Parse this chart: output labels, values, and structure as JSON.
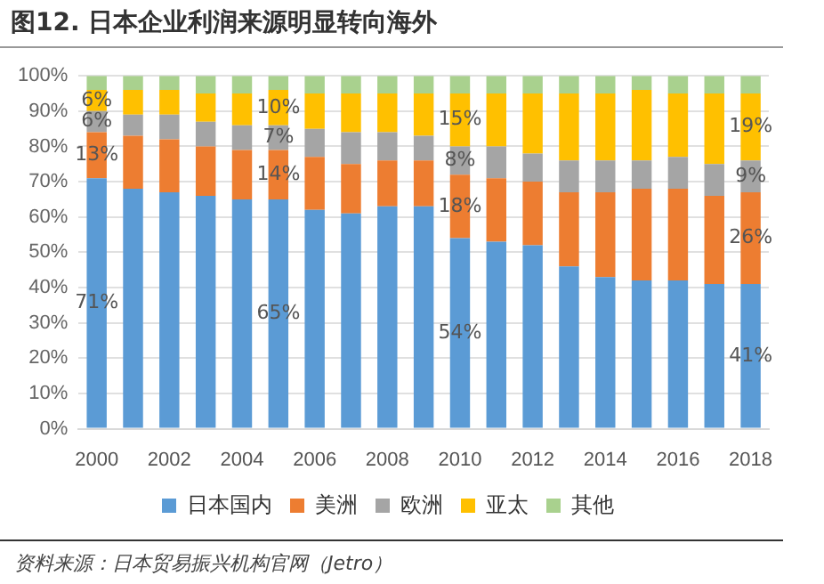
{
  "chart_data": {
    "type": "bar",
    "stacked": true,
    "title": "图12. 日本企业利润来源明显转向海外",
    "categories": [
      "2000",
      null,
      "2002",
      null,
      "2004",
      null,
      "2006",
      null,
      "2008",
      null,
      "2010",
      null,
      "2012",
      null,
      "2014",
      null,
      "2016",
      null,
      "2018"
    ],
    "series": [
      {
        "name": "日本国内",
        "color": "#5b9bd5",
        "values": [
          71,
          68,
          67,
          66,
          65,
          65,
          62,
          61,
          63,
          63,
          54,
          53,
          52,
          46,
          43,
          42,
          42,
          41,
          41
        ],
        "value_labels": [
          "71%",
          null,
          null,
          null,
          null,
          "65%",
          null,
          null,
          null,
          null,
          "54%",
          null,
          null,
          null,
          null,
          null,
          null,
          null,
          "41%"
        ]
      },
      {
        "name": "美洲",
        "color": "#ed7d31",
        "values": [
          13,
          15,
          15,
          14,
          14,
          14,
          15,
          14,
          13,
          13,
          18,
          18,
          18,
          21,
          24,
          26,
          26,
          25,
          26
        ],
        "value_labels": [
          "13%",
          null,
          null,
          null,
          null,
          "14%",
          null,
          null,
          null,
          null,
          "18%",
          null,
          null,
          null,
          null,
          null,
          null,
          null,
          "26%"
        ]
      },
      {
        "name": "欧洲",
        "color": "#a5a5a5",
        "values": [
          6,
          6,
          7,
          7,
          7,
          7,
          8,
          9,
          8,
          7,
          8,
          9,
          8,
          9,
          9,
          8,
          9,
          9,
          9
        ],
        "value_labels": [
          "6%",
          null,
          null,
          null,
          null,
          "7%",
          null,
          null,
          null,
          null,
          "8%",
          null,
          null,
          null,
          null,
          null,
          null,
          null,
          "9%"
        ]
      },
      {
        "name": "亚太",
        "color": "#ffc000",
        "values": [
          6,
          7,
          7,
          8,
          9,
          10,
          10,
          11,
          11,
          12,
          15,
          15,
          17,
          19,
          19,
          20,
          18,
          20,
          19
        ],
        "value_labels": [
          "6%",
          null,
          null,
          null,
          null,
          "10%",
          null,
          null,
          null,
          null,
          "15%",
          null,
          null,
          null,
          null,
          null,
          null,
          null,
          "19%"
        ]
      },
      {
        "name": "其他",
        "color": "#a9d18e",
        "values": [
          4,
          4,
          4,
          5,
          5,
          4,
          5,
          5,
          5,
          5,
          5,
          5,
          5,
          5,
          5,
          4,
          5,
          5,
          5
        ]
      }
    ],
    "ylim": [
      0,
      100
    ],
    "yticks": [
      {
        "value": 0,
        "label": "0%"
      },
      {
        "value": 10,
        "label": "10%"
      },
      {
        "value": 20,
        "label": "20%"
      },
      {
        "value": 30,
        "label": "30%"
      },
      {
        "value": 40,
        "label": "40%"
      },
      {
        "value": 50,
        "label": "50%"
      },
      {
        "value": 60,
        "label": "60%"
      },
      {
        "value": 70,
        "label": "70%"
      },
      {
        "value": 80,
        "label": "80%"
      },
      {
        "value": 90,
        "label": "90%"
      },
      {
        "value": 100,
        "label": "100%"
      }
    ],
    "grid": "y",
    "legend": "bottom",
    "annotations": [
      "资料来源：日本贸易振兴机构官网（Jetro）"
    ]
  }
}
